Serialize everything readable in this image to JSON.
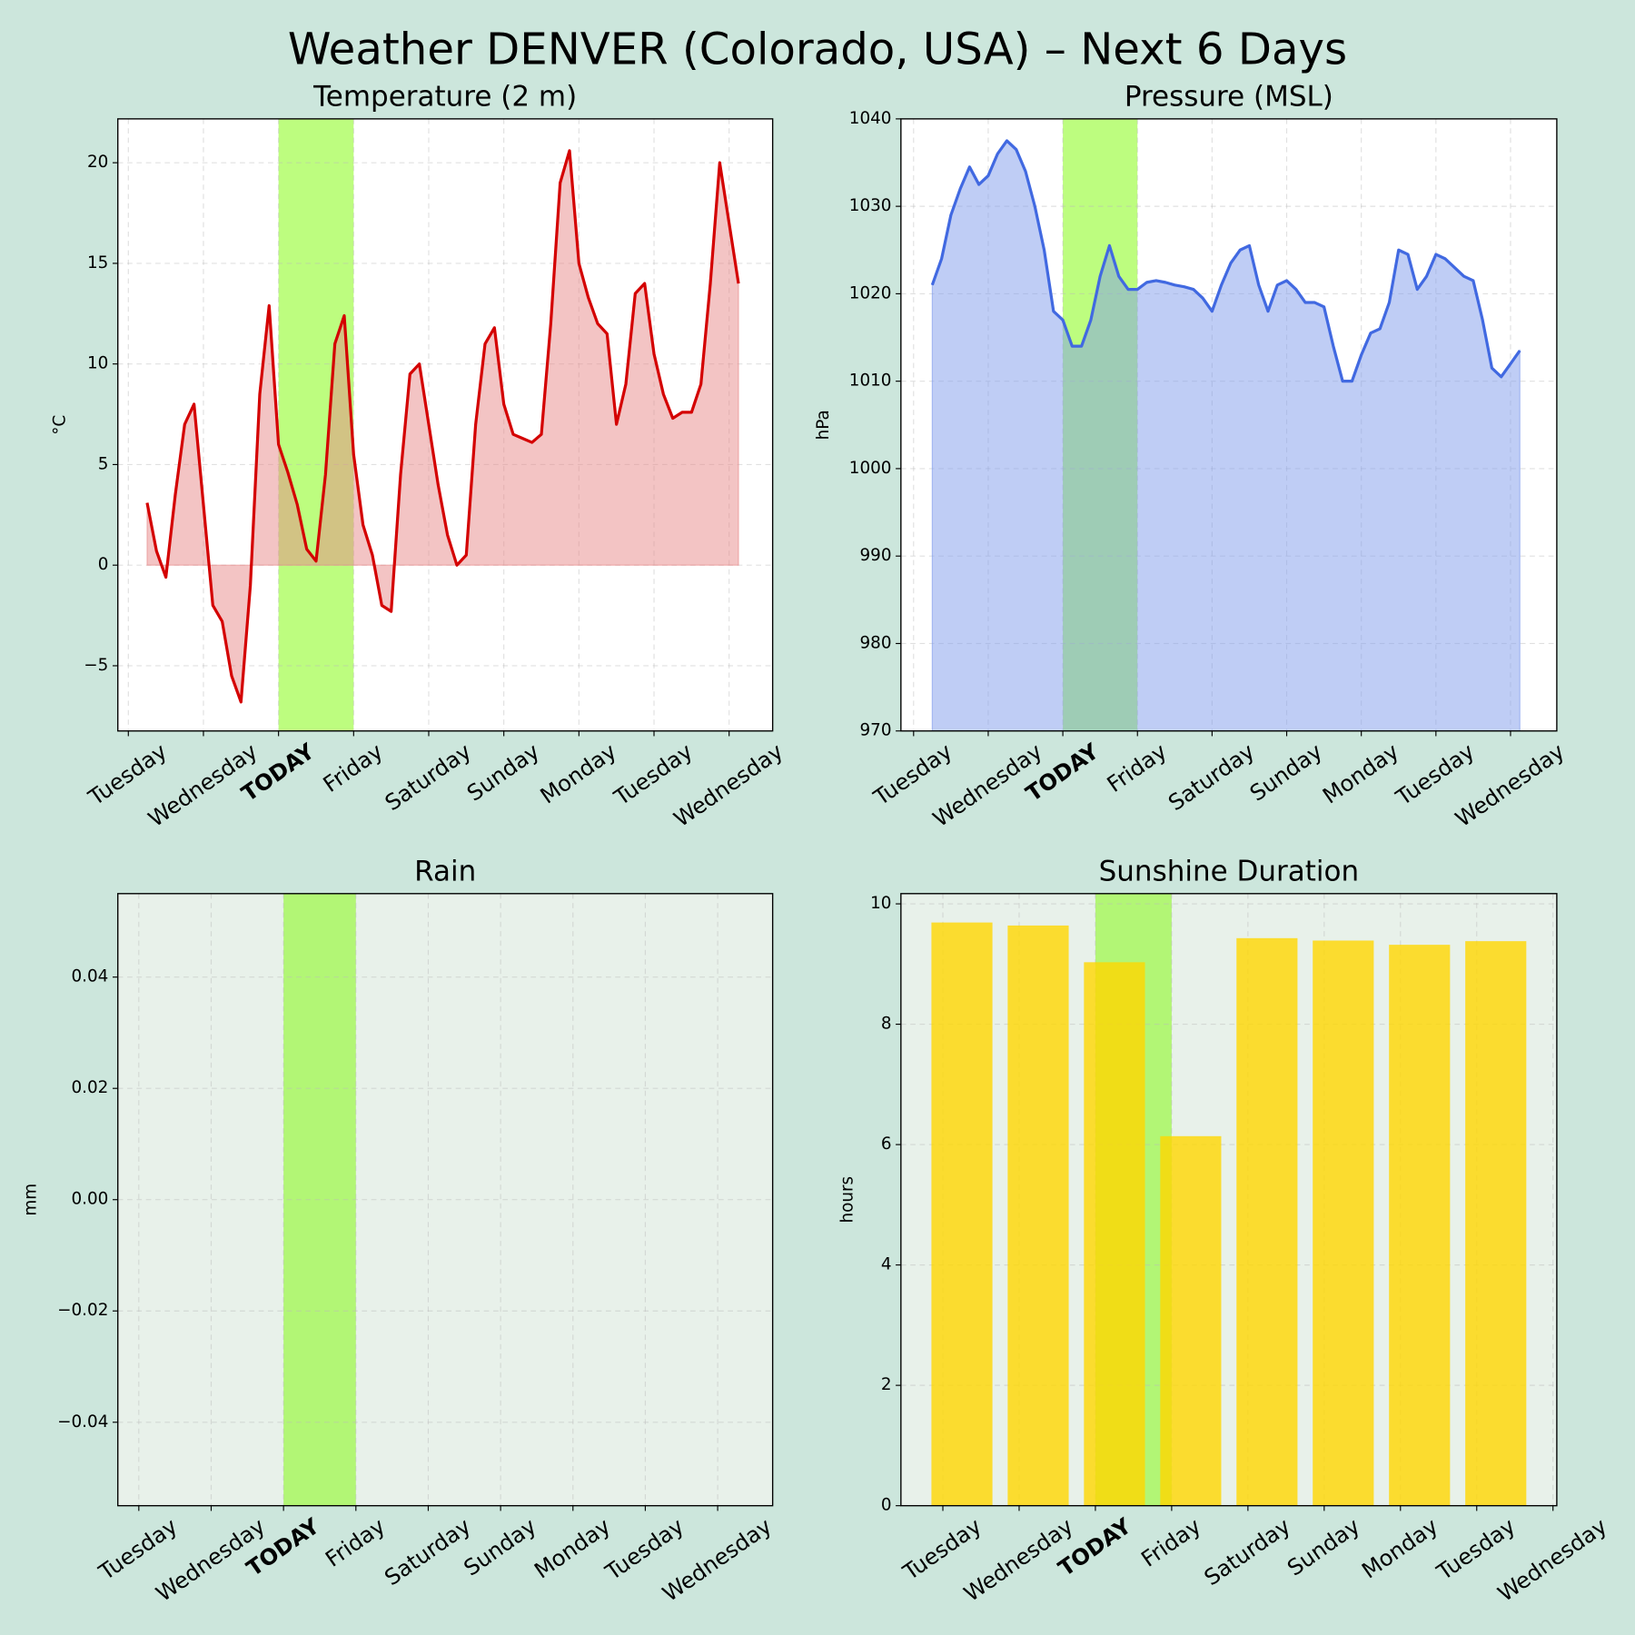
{
  "title": "Weather DENVER (Colorado, USA) – Next 6 Days",
  "chart_data": [
    {
      "type": "area",
      "title": "Temperature (2 m)",
      "ylabel": "°C",
      "color": "#d40000",
      "fill_color": "#e88a8a",
      "fill": "zero",
      "background": "#ffffff",
      "grid": true,
      "xlim": [
        -0.14,
        8.58
      ],
      "ylim": [
        -8.24,
        22.18
      ],
      "xticks": [
        {
          "value": 0,
          "label": "Tuesday"
        },
        {
          "value": 1,
          "label": "Wednesday"
        },
        {
          "value": 2,
          "label": "TODAY",
          "color": "#55bb00",
          "bold": true
        },
        {
          "value": 3,
          "label": "Friday"
        },
        {
          "value": 4,
          "label": "Saturday"
        },
        {
          "value": 5,
          "label": "Sunday"
        },
        {
          "value": 6,
          "label": "Monday"
        },
        {
          "value": 7,
          "label": "Tuesday"
        },
        {
          "value": 8,
          "label": "Wednesday"
        }
      ],
      "yticks": [
        {
          "value": -5,
          "label": "−5"
        },
        0,
        5,
        10,
        15,
        20
      ],
      "highlight": {
        "from": 2,
        "to": 3,
        "color": "#7cfc00"
      },
      "x": [
        0.25,
        0.375,
        0.5,
        0.625,
        0.75,
        0.875,
        1,
        1.125,
        1.25,
        1.375,
        1.5,
        1.625,
        1.75,
        1.875,
        2,
        2.125,
        2.25,
        2.375,
        2.5,
        2.625,
        2.75,
        2.875,
        3,
        3.125,
        3.25,
        3.375,
        3.5,
        3.625,
        3.75,
        3.875,
        4,
        4.125,
        4.25,
        4.375,
        4.5,
        4.625,
        4.75,
        4.875,
        5,
        5.125,
        5.25,
        5.375,
        5.5,
        5.625,
        5.75,
        5.875,
        6,
        6.125,
        6.25,
        6.375,
        6.5,
        6.625,
        6.75,
        6.875,
        7,
        7.125,
        7.25,
        7.375,
        7.5,
        7.625,
        7.75,
        7.875,
        8,
        8.125
      ],
      "values": [
        3.1,
        0.7,
        -0.6,
        3.5,
        7.0,
        8.0,
        3.0,
        -2.0,
        -2.8,
        -5.5,
        -6.8,
        -1.0,
        8.5,
        12.9,
        6.0,
        4.6,
        3.0,
        0.8,
        0.2,
        4.5,
        11.0,
        12.4,
        5.5,
        2.0,
        0.5,
        -2.0,
        -2.3,
        4.5,
        9.5,
        10.0,
        7.0,
        4.0,
        1.5,
        0.0,
        0.5,
        7.0,
        11.0,
        11.8,
        8.0,
        6.5,
        6.3,
        6.1,
        6.5,
        12.0,
        19.0,
        20.6,
        15.0,
        13.3,
        12.0,
        11.5,
        7.0,
        9.0,
        13.5,
        14.0,
        10.5,
        8.5,
        7.3,
        7.6,
        7.6,
        9.0,
        14.0,
        20.0,
        17.0,
        14.0
      ]
    },
    {
      "type": "area",
      "title": "Pressure (MSL)",
      "ylabel": "hPa",
      "color": "#4169e1",
      "fill_color": "#7f9bec",
      "fill": "axis",
      "background": "#ffffff",
      "grid": true,
      "xlim": [
        -0.17,
        8.62
      ],
      "ylim": [
        970,
        1040
      ],
      "xticks": [
        {
          "value": 0,
          "label": "Tuesday"
        },
        {
          "value": 1,
          "label": "Wednesday"
        },
        {
          "value": 2,
          "label": "TODAY",
          "color": "#55bb00",
          "bold": true
        },
        {
          "value": 3,
          "label": "Friday"
        },
        {
          "value": 4,
          "label": "Saturday"
        },
        {
          "value": 5,
          "label": "Sunday"
        },
        {
          "value": 6,
          "label": "Monday"
        },
        {
          "value": 7,
          "label": "Tuesday"
        },
        {
          "value": 8,
          "label": "Wednesday"
        }
      ],
      "yticks": [
        970,
        980,
        990,
        1000,
        1010,
        1020,
        1030,
        1040
      ],
      "highlight": {
        "from": 2,
        "to": 3,
        "color": "#7cfc00"
      },
      "x": [
        0.25,
        0.375,
        0.5,
        0.625,
        0.75,
        0.875,
        1,
        1.125,
        1.25,
        1.375,
        1.5,
        1.625,
        1.75,
        1.875,
        2,
        2.125,
        2.25,
        2.375,
        2.5,
        2.625,
        2.75,
        2.875,
        3,
        3.125,
        3.25,
        3.375,
        3.5,
        3.625,
        3.75,
        3.875,
        4,
        4.125,
        4.25,
        4.375,
        4.5,
        4.625,
        4.75,
        4.875,
        5,
        5.125,
        5.25,
        5.375,
        5.5,
        5.625,
        5.75,
        5.875,
        6,
        6.125,
        6.25,
        6.375,
        6.5,
        6.625,
        6.75,
        6.875,
        7,
        7.125,
        7.25,
        7.375,
        7.5,
        7.625,
        7.75,
        7.875,
        8,
        8.125
      ],
      "values": [
        1021,
        1024,
        1029,
        1032,
        1034.5,
        1032.5,
        1033.5,
        1036,
        1037.5,
        1036.5,
        1034,
        1030,
        1025,
        1018,
        1017,
        1014,
        1014,
        1017,
        1022,
        1025.5,
        1022,
        1020.5,
        1020.5,
        1021.3,
        1021.5,
        1021.3,
        1021,
        1020.8,
        1020.5,
        1019.5,
        1018,
        1021,
        1023.5,
        1025,
        1025.5,
        1021,
        1018,
        1021,
        1021.5,
        1020.5,
        1019,
        1019,
        1018.5,
        1014,
        1010,
        1010,
        1013,
        1015.5,
        1016,
        1019,
        1025,
        1024.5,
        1020.5,
        1022,
        1024.5,
        1024,
        1023,
        1022,
        1021.5,
        1017,
        1011.5,
        1010.5,
        1012,
        1013.5
      ]
    },
    {
      "type": "bar",
      "title": "Rain",
      "ylabel": "mm",
      "color": "#4f81bd",
      "background": "#e8f1ea",
      "grid": true,
      "xlim": [
        -0.29,
        8.76
      ],
      "ylim": [
        -0.055,
        0.055
      ],
      "xticks": [
        {
          "value": 0,
          "label": "Tuesday"
        },
        {
          "value": 1,
          "label": "Wednesday"
        },
        {
          "value": 2,
          "label": "TODAY",
          "color": "#55bb00",
          "bold": true
        },
        {
          "value": 3,
          "label": "Friday"
        },
        {
          "value": 4,
          "label": "Saturday"
        },
        {
          "value": 5,
          "label": "Sunday"
        },
        {
          "value": 6,
          "label": "Monday"
        },
        {
          "value": 7,
          "label": "Tuesday"
        },
        {
          "value": 8,
          "label": "Wednesday"
        }
      ],
      "yticks": [
        {
          "value": -0.04,
          "label": "−0.04"
        },
        {
          "value": -0.02,
          "label": "−0.02"
        },
        {
          "value": 0,
          "label": "0.00"
        },
        0.02,
        0.04
      ],
      "highlight": {
        "from": 2,
        "to": 3,
        "color": "#7cfc00"
      },
      "x": [],
      "values": []
    },
    {
      "type": "bar",
      "title": "Sunshine Duration",
      "ylabel": "hours",
      "color": "#ffd700",
      "background": "#e8f1ea",
      "grid": true,
      "xlim": [
        -0.55,
        8.05
      ],
      "ylim": [
        0,
        10.17
      ],
      "bar_width": 0.8,
      "xticks": [
        {
          "value": 0,
          "label": "Tuesday"
        },
        {
          "value": 1,
          "label": "Wednesday"
        },
        {
          "value": 2,
          "label": "TODAY",
          "color": "#55bb00",
          "bold": true
        },
        {
          "value": 3,
          "label": "Friday"
        },
        {
          "value": 4,
          "label": "Saturday"
        },
        {
          "value": 5,
          "label": "Sunday"
        },
        {
          "value": 6,
          "label": "Monday"
        },
        {
          "value": 7,
          "label": "Tuesday"
        },
        {
          "value": 8,
          "label": "Wednesday"
        }
      ],
      "yticks": [
        0,
        2,
        4,
        6,
        8,
        10
      ],
      "highlight": {
        "from": 2,
        "to": 3,
        "color": "#7cfc00"
      },
      "x": [
        0.25,
        1.25,
        2.25,
        3.25,
        4.25,
        5.25,
        6.25,
        7.25
      ],
      "values": [
        9.69,
        9.64,
        9.03,
        6.14,
        9.43,
        9.39,
        9.32,
        9.38
      ]
    }
  ]
}
